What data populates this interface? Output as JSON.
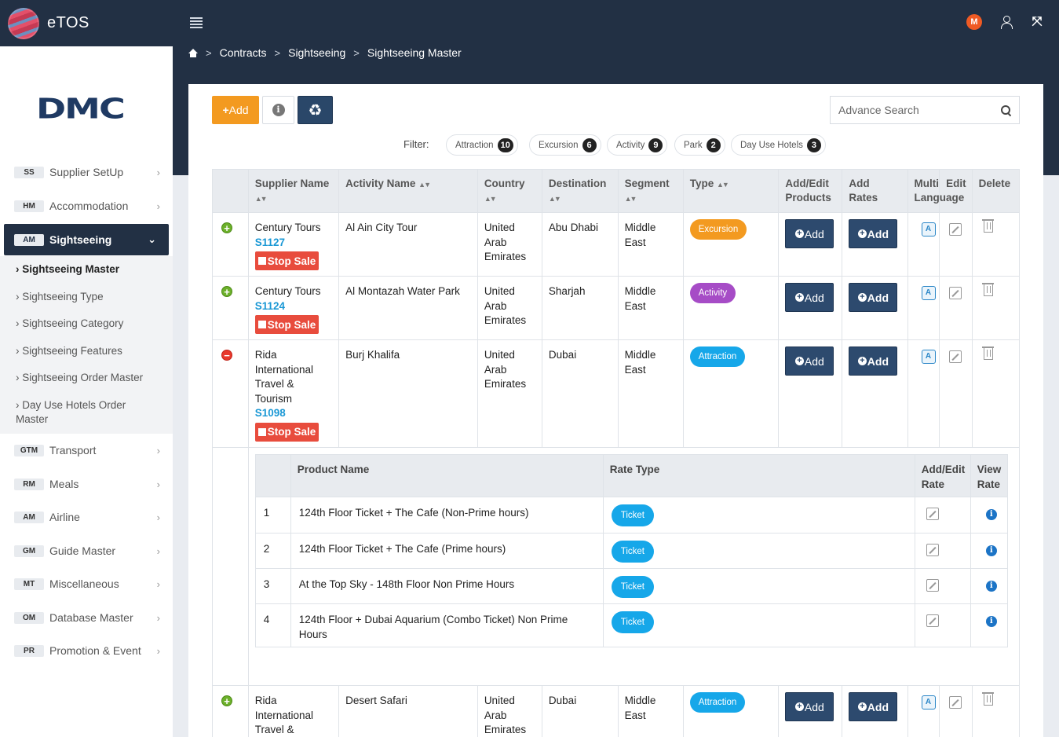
{
  "app": {
    "name": "eTOS",
    "user_initial": "M",
    "logo_text": "DMC"
  },
  "breadcrumb": [
    "Contracts",
    "Sightseeing",
    "Sightseeing Master"
  ],
  "sidebar": {
    "items_top": [
      {
        "abbr": "SS",
        "label": "Supplier SetUp"
      },
      {
        "abbr": "HM",
        "label": "Accommodation"
      },
      {
        "abbr": "AM",
        "label": "Sightseeing"
      }
    ],
    "sub_items": [
      "Sightseeing Master",
      "Sightseeing Type",
      "Sightseeing Category",
      "Sightseeing Features",
      "Sightseeing Order Master",
      "Day Use Hotels Order Master"
    ],
    "items_bottom": [
      {
        "abbr": "GTM",
        "label": "Transport"
      },
      {
        "abbr": "RM",
        "label": "Meals"
      },
      {
        "abbr": "AM",
        "label": "Airline"
      },
      {
        "abbr": "GM",
        "label": "Guide Master"
      },
      {
        "abbr": "MT",
        "label": "Miscellaneous"
      },
      {
        "abbr": "OM",
        "label": "Database Master"
      },
      {
        "abbr": "PR",
        "label": "Promotion & Event"
      }
    ]
  },
  "toolbar": {
    "add_label": "Add",
    "search_placeholder": "Advance Search"
  },
  "filter": {
    "label": "Filter:",
    "chips": [
      {
        "label": "Attraction",
        "count": "10"
      },
      {
        "label": "Excursion",
        "count": "6"
      },
      {
        "label": "Activity",
        "count": "9"
      },
      {
        "label": "Park",
        "count": "2"
      },
      {
        "label": "Day Use Hotels",
        "count": "3"
      }
    ]
  },
  "table": {
    "headers": {
      "supplier": "Supplier Name",
      "activity": "Activity Name",
      "country": "Country",
      "destination": "Destination",
      "segment": "Segment",
      "type": "Type",
      "add_products": "Add/Edit Products",
      "add_rates": "Add Rates",
      "multi_language": "Multi Language",
      "edit": "Edit",
      "delete": "Delete"
    },
    "add_label": "Add",
    "stop_sale_label": "Stop Sale",
    "rows": [
      {
        "supplier": "Century Tours",
        "code": "S1127",
        "activity": "Al Ain City Tour",
        "country": "United Arab Emirates",
        "destination": "Abu Dhabi",
        "segment": "Middle East",
        "type": "Excursion"
      },
      {
        "supplier": "Century Tours",
        "code": "S1124",
        "activity": "Al Montazah Water Park",
        "country": "United Arab Emirates",
        "destination": "Sharjah",
        "segment": "Middle East",
        "type": "Activity"
      },
      {
        "supplier": "Rida International Travel & Tourism",
        "code": "S1098",
        "activity": "Burj Khalifa",
        "country": "United Arab Emirates",
        "destination": "Dubai",
        "segment": "Middle East",
        "type": "Attraction"
      },
      {
        "supplier": "Rida International Travel &",
        "code": "",
        "activity": "Desert Safari",
        "country": "United Arab Emirates",
        "destination": "Dubai",
        "segment": "Middle East",
        "type": "Attraction"
      }
    ]
  },
  "products": {
    "headers": {
      "name": "Product Name",
      "rate_type": "Rate Type",
      "add_edit_rate": "Add/Edit Rate",
      "view_rate": "View Rate"
    },
    "rows": [
      {
        "num": "1",
        "name": "124th Floor Ticket + The Cafe (Non-Prime hours)",
        "rate_type": "Ticket"
      },
      {
        "num": "2",
        "name": "124th Floor Ticket + The Cafe (Prime hours)",
        "rate_type": "Ticket"
      },
      {
        "num": "3",
        "name": "At the Top Sky - 148th Floor Non Prime Hours",
        "rate_type": "Ticket"
      },
      {
        "num": "4",
        "name": "124th Floor + Dubai Aquarium (Combo Ticket) Non Prime Hours",
        "rate_type": "Ticket"
      }
    ]
  }
}
